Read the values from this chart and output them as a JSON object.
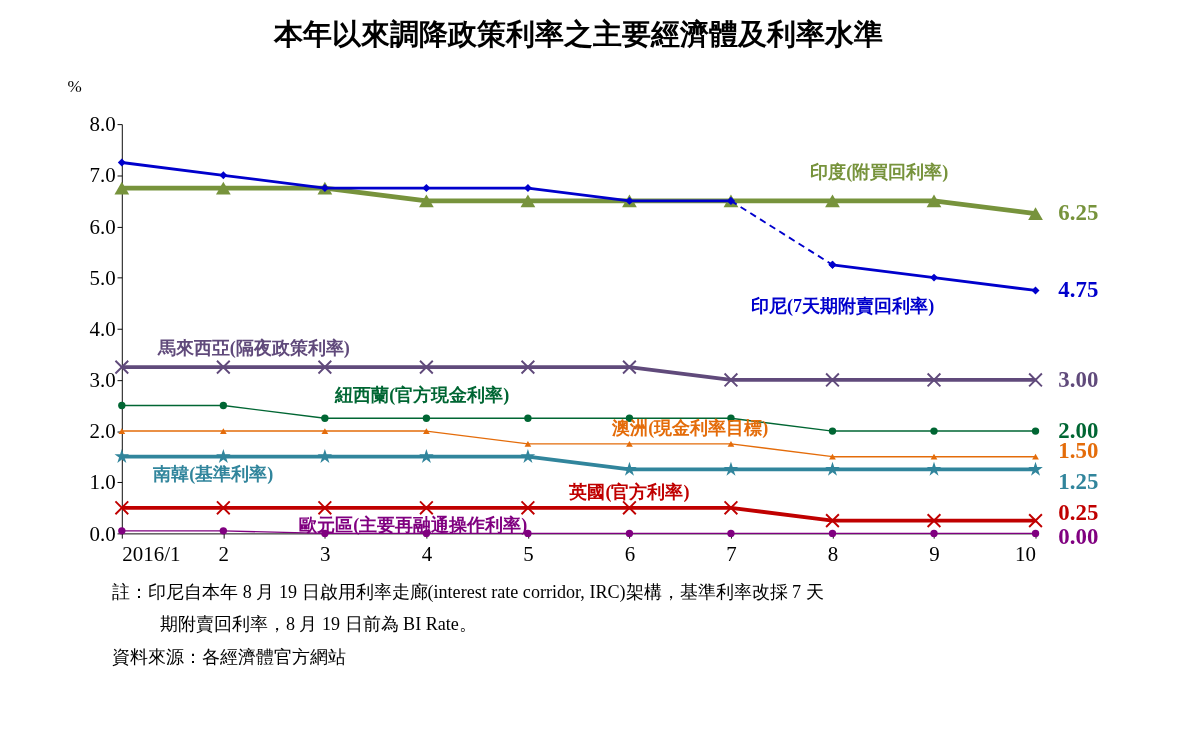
{
  "chart_data": {
    "type": "line",
    "title": "本年以來調降政策利率之主要經濟體及利率水準",
    "ylabel": "%",
    "categories": [
      "2016/1",
      "2",
      "3",
      "4",
      "5",
      "6",
      "7",
      "8",
      "9",
      "10"
    ],
    "ylim": [
      0,
      8
    ],
    "yticks": [
      {
        "value": 0,
        "label": "0.0"
      },
      {
        "value": 1,
        "label": "1.0"
      },
      {
        "value": 2,
        "label": "2.0"
      },
      {
        "value": 3,
        "label": "3.0"
      },
      {
        "value": 4,
        "label": "4.0"
      },
      {
        "value": 5,
        "label": "5.0"
      },
      {
        "value": 6,
        "label": "6.0"
      },
      {
        "value": 7,
        "label": "7.0"
      },
      {
        "value": 8,
        "label": "8.0"
      }
    ],
    "series": [
      {
        "name": "印度(附買回利率)",
        "color": "#77933c",
        "marker": "triangle",
        "line_style": "solid",
        "values": [
          6.75,
          6.75,
          6.75,
          6.5,
          6.5,
          6.5,
          6.5,
          6.5,
          6.5,
          6.25
        ],
        "value_labels": [
          null,
          null,
          null,
          null,
          null,
          null,
          null,
          null,
          null,
          "6.25"
        ]
      },
      {
        "color": "#0000cc",
        "marker": "diamond",
        "line_style": "solid",
        "values": [
          7.25,
          7.0,
          6.75,
          6.75,
          6.75,
          6.5,
          6.5,
          null,
          null,
          null
        ]
      },
      {
        "color": "#0000cc",
        "marker": "diamond",
        "line_style": "dashed",
        "values": [
          null,
          null,
          null,
          null,
          null,
          null,
          6.5,
          5.25,
          null,
          null
        ]
      },
      {
        "name": "印尼(7天期附賣回利率)",
        "color": "#0000cc",
        "marker": "diamond",
        "line_style": "solid",
        "values": [
          null,
          null,
          null,
          null,
          null,
          null,
          null,
          5.25,
          5.0,
          4.75
        ],
        "value_labels": [
          null,
          null,
          null,
          null,
          null,
          null,
          null,
          null,
          null,
          "4.75"
        ]
      },
      {
        "name": "馬來西亞(隔夜政策利率)",
        "color": "#604a7b",
        "marker": "cross",
        "line_style": "solid",
        "values": [
          3.25,
          3.25,
          3.25,
          3.25,
          3.25,
          3.25,
          3.0,
          3.0,
          3.0,
          3.0
        ],
        "value_labels": [
          null,
          null,
          null,
          null,
          null,
          null,
          null,
          null,
          null,
          "3.00"
        ]
      },
      {
        "name": "紐西蘭(官方現金利率)",
        "color": "#006633",
        "marker": "circle",
        "line_style": "solid",
        "values": [
          2.5,
          2.5,
          2.25,
          2.25,
          2.25,
          2.25,
          2.25,
          2.0,
          2.0,
          2.0
        ],
        "value_labels": [
          null,
          null,
          null,
          null,
          null,
          null,
          null,
          null,
          null,
          "2.00"
        ]
      },
      {
        "name": "澳洲(現金利率目標)",
        "color": "#e46c0a",
        "marker": "triangle",
        "line_style": "solid",
        "values": [
          2.0,
          2.0,
          2.0,
          2.0,
          1.75,
          1.75,
          1.75,
          1.5,
          1.5,
          1.5
        ],
        "value_labels": [
          null,
          null,
          null,
          null,
          null,
          null,
          null,
          null,
          null,
          "1.50"
        ]
      },
      {
        "name": "南韓(基準利率)",
        "color": "#31859c",
        "marker": "star",
        "line_style": "solid",
        "values": [
          1.5,
          1.5,
          1.5,
          1.5,
          1.5,
          1.25,
          1.25,
          1.25,
          1.25,
          1.25
        ],
        "value_labels": [
          null,
          null,
          null,
          null,
          null,
          null,
          null,
          null,
          null,
          "1.25"
        ]
      },
      {
        "name": "英國(官方利率)",
        "color": "#c00000",
        "marker": "cross",
        "line_style": "solid",
        "values": [
          0.5,
          0.5,
          0.5,
          0.5,
          0.5,
          0.5,
          0.5,
          0.25,
          0.25,
          0.25
        ],
        "value_labels": [
          null,
          null,
          null,
          null,
          null,
          null,
          null,
          null,
          null,
          "0.25"
        ]
      },
      {
        "name": "歐元區(主要再融通操作利率)",
        "color": "#800080",
        "marker": "circle",
        "line_style": "solid",
        "values": [
          0.05,
          0.05,
          0.0,
          0.0,
          0.0,
          0.0,
          0.0,
          0.0,
          0.0,
          0.0
        ],
        "value_labels": [
          null,
          null,
          null,
          null,
          null,
          null,
          null,
          null,
          null,
          "0.00"
        ]
      }
    ],
    "annotations": [
      "註：印尼自本年 8 月 19 日啟用利率走廊(interest rate corridor, IRC)架構，基準利率改採 7 天期附賣回利率，8 月 19 日前為 BI Rate。",
      "資料來源：各經濟體官方網站"
    ]
  }
}
